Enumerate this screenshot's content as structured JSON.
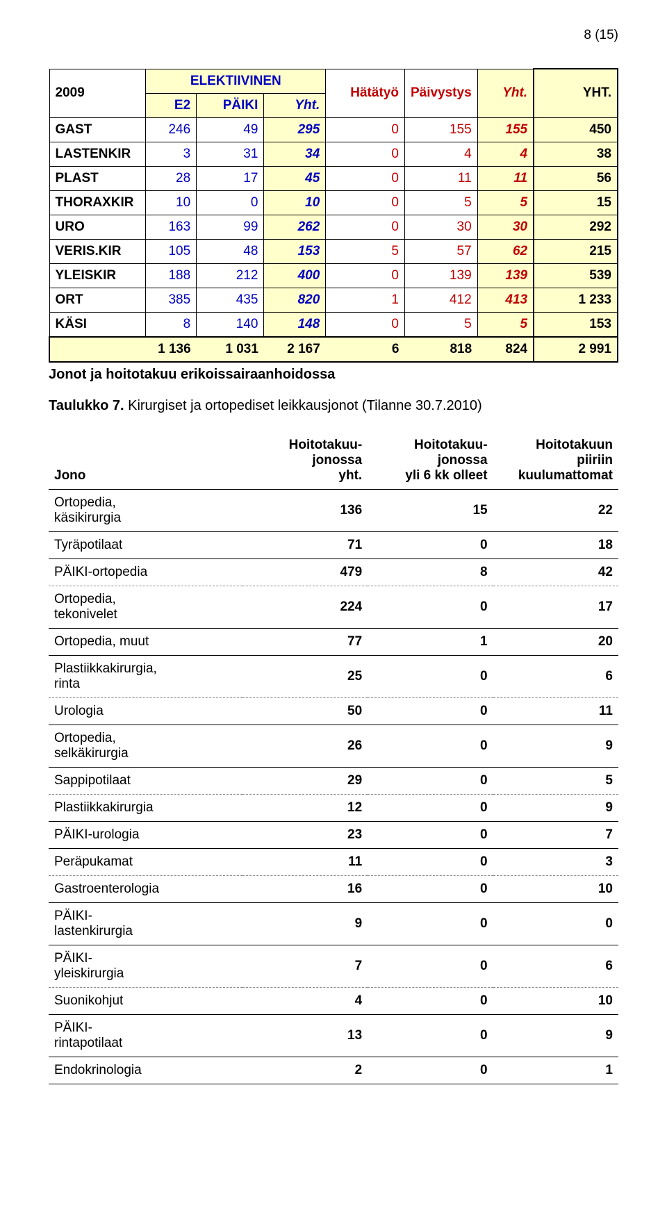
{
  "page_number": "8 (15)",
  "t1": {
    "year": "2009",
    "head_elekt": "ELEKTIIVINEN",
    "head_hata": "Hätätyö",
    "head_paiv": "Päivystys",
    "head_yht_it": "Yht.",
    "head_yht_big": "YHT.",
    "sub_e2": "E2",
    "sub_paiki": "PÄIKI",
    "sub_yht": "Yht.",
    "colors": {
      "blue": "#0000c0",
      "red": "#c00000",
      "cream": "#ffffcc"
    },
    "rows": [
      {
        "label": "GAST",
        "e2": "246",
        "paiki": "49",
        "yht1": "295",
        "hata": "0",
        "paiv": "155",
        "yht2": "155",
        "grand": "450"
      },
      {
        "label": "LASTENKIR",
        "e2": "3",
        "paiki": "31",
        "yht1": "34",
        "hata": "0",
        "paiv": "4",
        "yht2": "4",
        "grand": "38"
      },
      {
        "label": "PLAST",
        "e2": "28",
        "paiki": "17",
        "yht1": "45",
        "hata": "0",
        "paiv": "11",
        "yht2": "11",
        "grand": "56"
      },
      {
        "label": "THORAXKIR",
        "e2": "10",
        "paiki": "0",
        "yht1": "10",
        "hata": "0",
        "paiv": "5",
        "yht2": "5",
        "grand": "15"
      },
      {
        "label": "URO",
        "e2": "163",
        "paiki": "99",
        "yht1": "262",
        "hata": "0",
        "paiv": "30",
        "yht2": "30",
        "grand": "292"
      },
      {
        "label": "VERIS.KIR",
        "e2": "105",
        "paiki": "48",
        "yht1": "153",
        "hata": "5",
        "paiv": "57",
        "yht2": "62",
        "grand": "215"
      },
      {
        "label": "YLEISKIR",
        "e2": "188",
        "paiki": "212",
        "yht1": "400",
        "hata": "0",
        "paiv": "139",
        "yht2": "139",
        "grand": "539"
      },
      {
        "label": "ORT",
        "e2": "385",
        "paiki": "435",
        "yht1": "820",
        "hata": "1",
        "paiv": "412",
        "yht2": "413",
        "grand": "1 233"
      },
      {
        "label": "KÄSI",
        "e2": "8",
        "paiki": "140",
        "yht1": "148",
        "hata": "0",
        "paiv": "5",
        "yht2": "5",
        "grand": "153"
      }
    ],
    "totals": {
      "e2": "1 136",
      "paiki": "1 031",
      "yht1": "2 167",
      "hata": "6",
      "paiv": "818",
      "yht2": "824",
      "grand": "2 991"
    }
  },
  "section_title": "Jonot ja hoitotakuu erikoissairaanhoidossa",
  "caption_bold": "Taulukko 7.",
  "caption_rest": " Kirurgiset ja ortopediset leikkausjonot (Tilanne 30.7.2010)",
  "t2": {
    "head_jono": "Jono",
    "head_c2a": "Hoitotakuu-",
    "head_c2b": "jonossa",
    "head_c2c": "yht.",
    "head_c3a": "Hoitotakuu-",
    "head_c3b": "jonossa",
    "head_c3c": "yli 6 kk olleet",
    "head_c4a": "Hoitotakuun",
    "head_c4b": "piiriin",
    "head_c4c": "kuulumattomat",
    "rows": [
      {
        "label": "Ortopedia,\nkäsikirurgia",
        "a": "136",
        "b": "15",
        "c": "22",
        "sep": "solid"
      },
      {
        "label": "Tyräpotilaat",
        "a": "71",
        "b": "0",
        "c": "18",
        "sep": "solid"
      },
      {
        "label": "PÄIKI-ortopedia",
        "a": "479",
        "b": "8",
        "c": "42",
        "sep": "dashed"
      },
      {
        "label": "Ortopedia,\ntekonivelet",
        "a": "224",
        "b": "0",
        "c": "17",
        "sep": "solid"
      },
      {
        "label": "Ortopedia, muut",
        "a": "77",
        "b": "1",
        "c": "20",
        "sep": "solid"
      },
      {
        "label": "Plastiikkakirurgia,\nrinta",
        "a": "25",
        "b": "0",
        "c": "6",
        "sep": "dashed"
      },
      {
        "label": "Urologia",
        "a": "50",
        "b": "0",
        "c": "11",
        "sep": "solid"
      },
      {
        "label": "Ortopedia,\nselkäkirurgia",
        "a": "26",
        "b": "0",
        "c": "9",
        "sep": "solid"
      },
      {
        "label": "Sappipotilaat",
        "a": "29",
        "b": "0",
        "c": "5",
        "sep": "dashed"
      },
      {
        "label": "Plastiikkakirurgia",
        "a": "12",
        "b": "0",
        "c": "9",
        "sep": "solid"
      },
      {
        "label": "PÄIKI-urologia",
        "a": "23",
        "b": "0",
        "c": "7",
        "sep": "solid"
      },
      {
        "label": "Peräpukamat",
        "a": "11",
        "b": "0",
        "c": "3",
        "sep": "dashed"
      },
      {
        "label": "Gastroenterologia",
        "a": "16",
        "b": "0",
        "c": "10",
        "sep": "solid"
      },
      {
        "label": "PÄIKI-\nlastenkirurgia",
        "a": "9",
        "b": "0",
        "c": "0",
        "sep": "solid"
      },
      {
        "label": "PÄIKI-\nyleiskirurgia",
        "a": "7",
        "b": "0",
        "c": "6",
        "sep": "dashed"
      },
      {
        "label": "Suonikohjut",
        "a": "4",
        "b": "0",
        "c": "10",
        "sep": "solid"
      },
      {
        "label": "PÄIKI-\nrintapotilaat",
        "a": "13",
        "b": "0",
        "c": "9",
        "sep": "solid"
      },
      {
        "label": "Endokrinologia",
        "a": "2",
        "b": "0",
        "c": "1",
        "sep": "solid"
      }
    ]
  }
}
